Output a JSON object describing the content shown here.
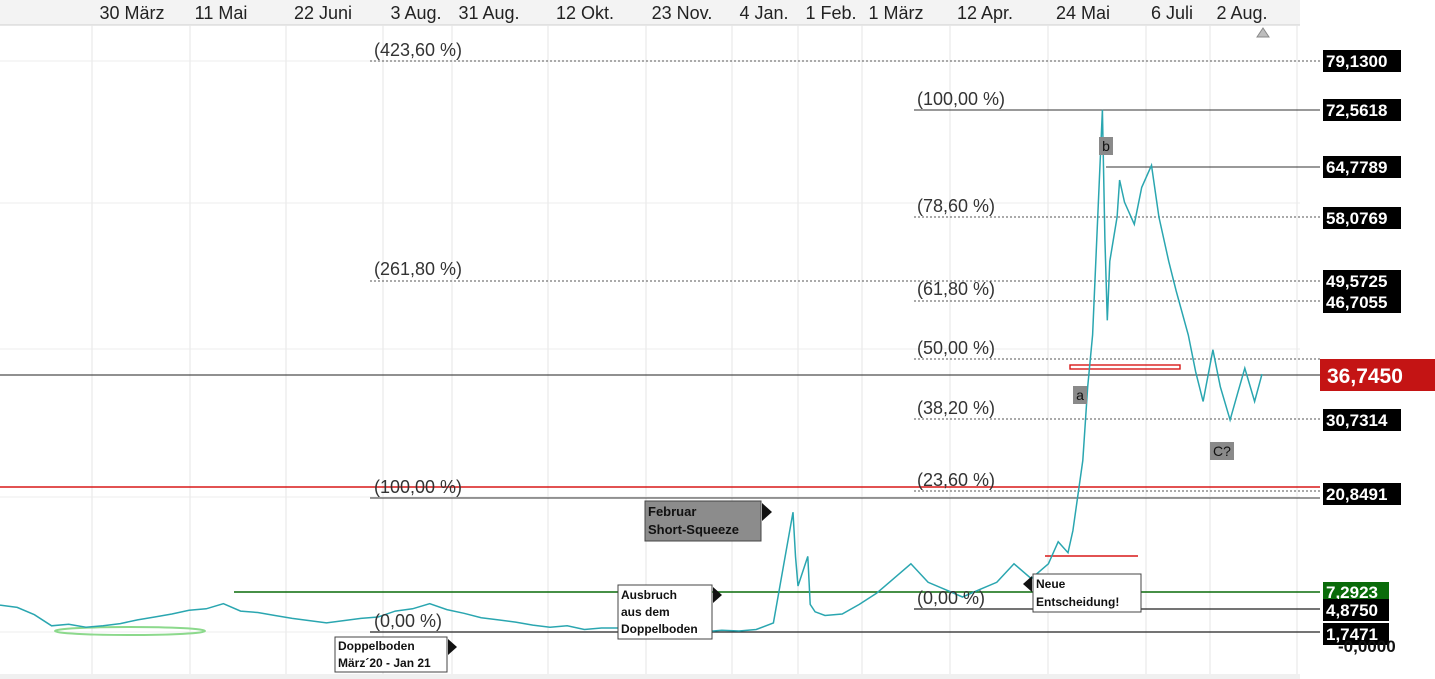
{
  "chart_data": {
    "type": "line",
    "x_ticks": [
      "30 März",
      "11 Mai",
      "22 Juni",
      "3 Aug.",
      "31 Aug.",
      "12 Okt.",
      "23 Nov.",
      "4 Jan.",
      "1 Feb.",
      "1 März",
      "12 Apr.",
      "24 Mai",
      "6 Juli",
      "2 Aug."
    ],
    "current_price": "36,7450",
    "price_labels": [
      "79,1300",
      "72,5618",
      "64,7789",
      "58,0769",
      "49,5725",
      "46,7055",
      "30,7314",
      "20,8491",
      "7,2923",
      "4,8750",
      "1,7471",
      "-0,0000"
    ],
    "fib_levels_lower": [
      "(423,60 %)",
      "(261,80 %)",
      "(100,00 %)",
      "(0,00 %)"
    ],
    "fib_levels_upper": [
      "(100,00 %)",
      "(78,60 %)",
      "(61,80 %)",
      "(50,00 %)",
      "(38,20 %)",
      "(23,60 %)",
      "(0,00 %)"
    ],
    "wave_labels": [
      "b",
      "a",
      "C?"
    ],
    "annotations": {
      "februar": [
        "Februar",
        "Short-Squeeze"
      ],
      "ausbruch": [
        "Ausbruch",
        "aus dem",
        "Doppelboden"
      ],
      "doppelboden": [
        "Doppelboden",
        "März´20 - Jan 21"
      ],
      "neue": [
        "Neue",
        "Entscheidung!"
      ]
    },
    "series": [
      {
        "x": [
          "2020-03-09",
          "2020-03-16",
          "2020-03-23",
          "2020-03-30",
          "2020-04-06",
          "2020-04-13",
          "2020-04-20",
          "2020-04-27",
          "2020-05-04",
          "2020-05-11",
          "2020-05-18",
          "2020-05-25",
          "2020-06-01",
          "2020-06-08",
          "2020-06-15",
          "2020-06-22",
          "2020-06-29",
          "2020-07-06",
          "2020-07-13",
          "2020-07-20",
          "2020-07-27",
          "2020-08-03",
          "2020-08-10",
          "2020-08-17",
          "2020-08-24",
          "2020-08-31",
          "2020-09-07",
          "2020-09-14",
          "2020-09-21",
          "2020-09-28",
          "2020-10-05",
          "2020-10-12",
          "2020-10-19",
          "2020-10-26",
          "2020-11-02",
          "2020-11-09",
          "2020-11-16",
          "2020-11-23",
          "2020-11-30",
          "2020-12-07",
          "2020-12-14",
          "2020-12-21",
          "2020-12-28",
          "2021-01-04",
          "2021-01-11",
          "2021-01-18",
          "2021-01-22",
          "2021-01-26",
          "2021-01-27",
          "2021-01-28",
          "2021-02-01",
          "2021-02-02",
          "2021-02-04",
          "2021-02-08",
          "2021-02-15",
          "2021-02-22",
          "2021-03-01",
          "2021-03-08",
          "2021-03-15",
          "2021-03-22",
          "2021-03-29",
          "2021-04-05",
          "2021-04-12",
          "2021-04-19",
          "2021-04-26",
          "2021-05-03",
          "2021-05-10",
          "2021-05-14",
          "2021-05-18",
          "2021-05-20",
          "2021-05-24",
          "2021-05-26",
          "2021-05-28",
          "2021-06-01",
          "2021-06-02",
          "2021-06-03",
          "2021-06-04",
          "2021-06-07",
          "2021-06-08",
          "2021-06-10",
          "2021-06-14",
          "2021-06-17",
          "2021-06-21",
          "2021-06-24",
          "2021-06-28",
          "2021-07-01",
          "2021-07-06",
          "2021-07-09",
          "2021-07-12",
          "2021-07-16",
          "2021-07-19",
          "2021-07-23",
          "2021-07-26",
          "2021-07-29",
          "2021-08-02",
          "2021-08-05"
        ],
        "y": [
          5.4,
          5.1,
          4.1,
          2.6,
          2.8,
          2.4,
          2.6,
          2.9,
          3.4,
          3.8,
          4.2,
          4.7,
          4.9,
          5.6,
          4.6,
          4.4,
          4.0,
          3.6,
          3.3,
          3.0,
          3.3,
          3.6,
          3.8,
          4.6,
          4.9,
          5.6,
          4.8,
          4.3,
          3.7,
          3.4,
          3.1,
          2.7,
          2.4,
          2.6,
          2.1,
          2.3,
          2.3,
          2.8,
          2.4,
          1.9,
          1.8,
          1.8,
          2.0,
          1.9,
          2.1,
          3.0,
          10.5,
          18.0,
          12.0,
          8.0,
          12.0,
          5.5,
          4.5,
          4.0,
          4.2,
          5.5,
          7.0,
          9.0,
          11.0,
          8.5,
          7.5,
          6.5,
          7.5,
          8.5,
          11.0,
          9.0,
          11.0,
          14.0,
          12.5,
          15.5,
          25.0,
          35.0,
          42.0,
          72.5,
          55.0,
          44.0,
          52.0,
          58.0,
          63.0,
          60.0,
          57.0,
          62.0,
          65.0,
          58.0,
          52.0,
          48.0,
          42.0,
          37.0,
          33.0,
          40.0,
          35.0,
          30.5,
          34.0,
          37.5,
          33.0,
          36.7
        ]
      }
    ],
    "ylim": [
      -0.5,
      85
    ]
  }
}
